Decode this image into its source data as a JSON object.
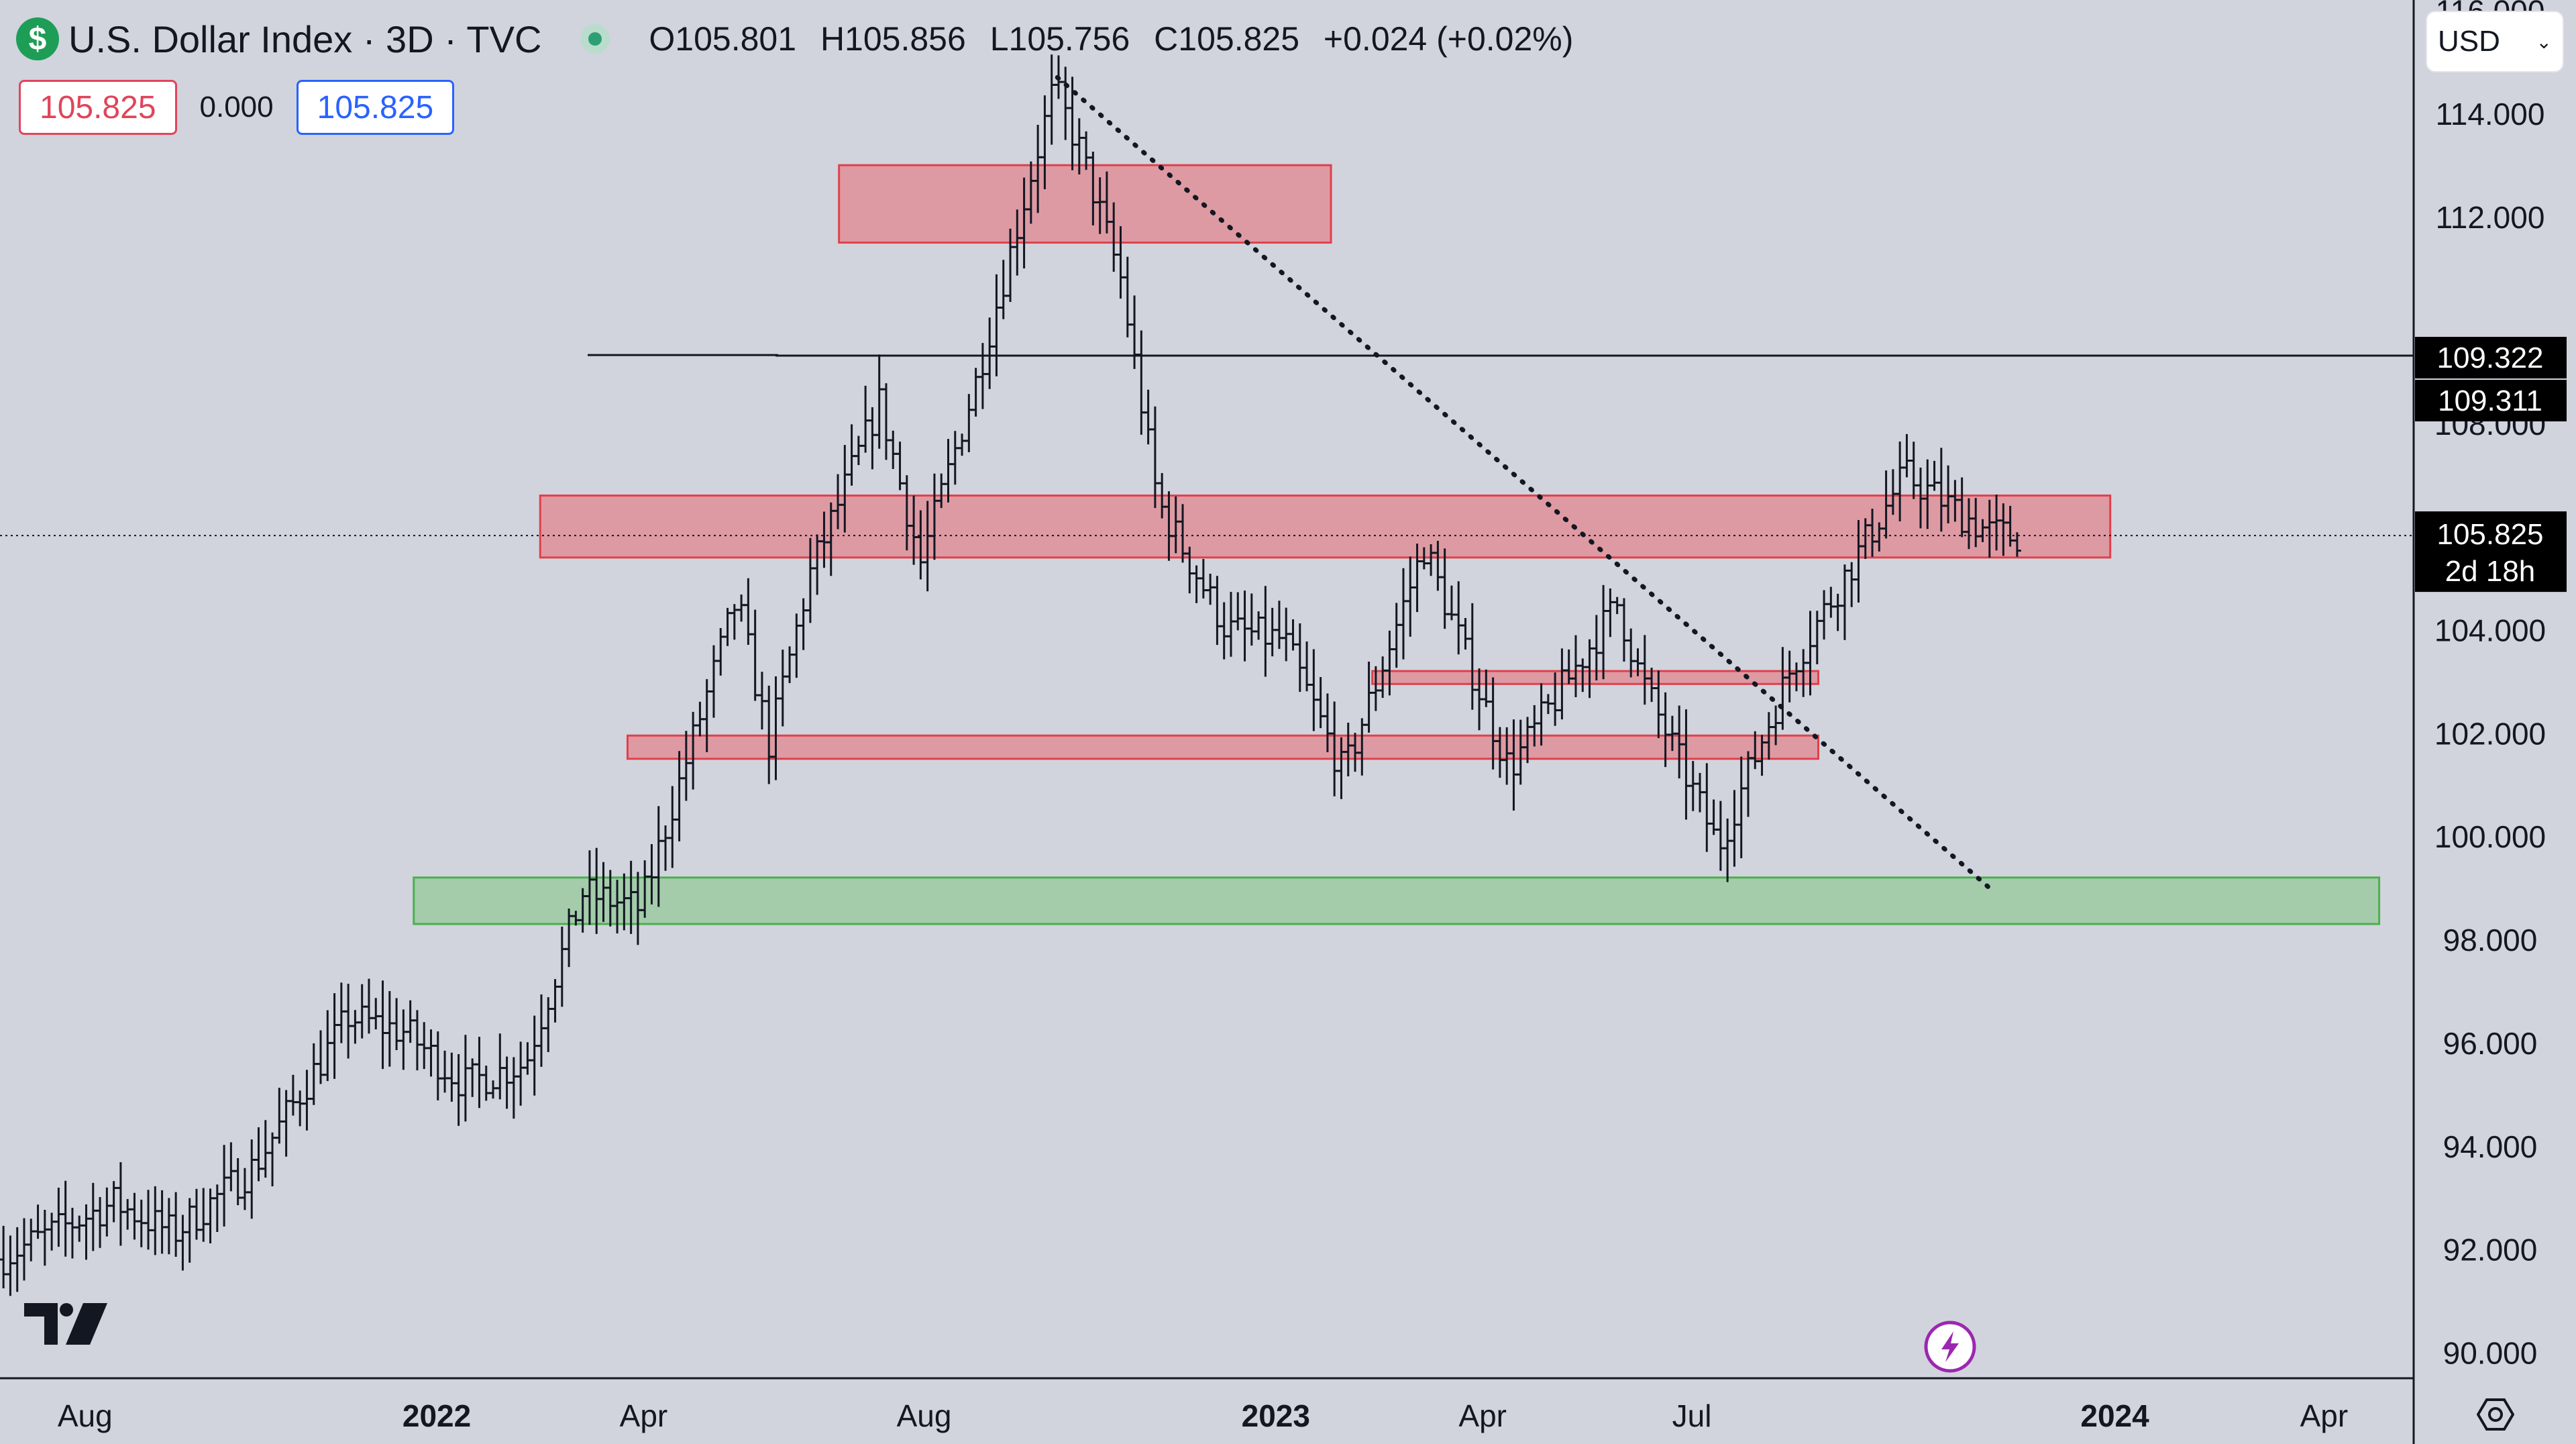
{
  "header": {
    "symbol_badge": "$",
    "title": "U.S. Dollar Index · 3D · TVC",
    "status_icon": "market-status-dot-icon",
    "ohlc": {
      "open": "O105.801",
      "high": "H105.856",
      "low": "L105.756",
      "close": "C105.825",
      "change": "+0.024 (+0.02%)"
    }
  },
  "trade": {
    "sell_price": "105.825",
    "spread": "0.000",
    "buy_price": "105.825"
  },
  "currency_selector": {
    "value": "USD"
  },
  "colors": {
    "background": "#d1d4dc",
    "resistance_zone": "#de9aa3",
    "resistance_border": "#e0404c",
    "support_zone": "#a4ccaa",
    "support_border": "#4caf50",
    "bars": "#131722",
    "badge_green": "#1e9d57",
    "sell": "#e0455a",
    "buy": "#2962ff"
  },
  "chart_data": {
    "type": "ohlc",
    "title": "U.S. Dollar Index · 3D · TVC",
    "xlabel": "",
    "ylabel": "",
    "x_range": [
      "2021-06-25",
      "2024-05-10"
    ],
    "ylim": [
      89.5,
      116.2
    ],
    "y_ticks": [
      90,
      92,
      94,
      96,
      98,
      100,
      102,
      104,
      106,
      108,
      110,
      112,
      114,
      116
    ],
    "y_tick_labels": [
      "90.000",
      "92.000",
      "94.000",
      "96.000",
      "98.000",
      "100.000",
      "102.000",
      "104.000",
      "",
      "108.000",
      "",
      "112.000",
      "114.000",
      "116.000"
    ],
    "x_ticks": [
      {
        "date": "2021-08-01",
        "label": "Aug",
        "bold": false
      },
      {
        "date": "2022-01-01",
        "label": "2022",
        "bold": true
      },
      {
        "date": "2022-04-01",
        "label": "Apr",
        "bold": false
      },
      {
        "date": "2022-08-01",
        "label": "Aug",
        "bold": false
      },
      {
        "date": "2023-01-01",
        "label": "2023",
        "bold": true
      },
      {
        "date": "2023-04-01",
        "label": "Apr",
        "bold": false
      },
      {
        "date": "2023-07-01",
        "label": "Jul",
        "bold": false
      },
      {
        "date": "2024-01-01",
        "label": "2024",
        "bold": true
      },
      {
        "date": "2024-04-01",
        "label": "Apr",
        "bold": false
      }
    ],
    "price_path": [
      {
        "date": "2021-06-25",
        "value": 91.8
      },
      {
        "date": "2021-08-15",
        "value": 92.9
      },
      {
        "date": "2021-09-10",
        "value": 92.3
      },
      {
        "date": "2021-10-15",
        "value": 93.6
      },
      {
        "date": "2021-11-25",
        "value": 96.5
      },
      {
        "date": "2021-12-20",
        "value": 96.2
      },
      {
        "date": "2022-01-14",
        "value": 95.2
      },
      {
        "date": "2022-02-10",
        "value": 95.6
      },
      {
        "date": "2022-03-07",
        "value": 98.9
      },
      {
        "date": "2022-04-01",
        "value": 98.6
      },
      {
        "date": "2022-05-13",
        "value": 104.6
      },
      {
        "date": "2022-05-27",
        "value": 101.8
      },
      {
        "date": "2022-06-14",
        "value": 105.1
      },
      {
        "date": "2022-07-14",
        "value": 108.4
      },
      {
        "date": "2022-08-01",
        "value": 105.3
      },
      {
        "date": "2022-08-25",
        "value": 108.8
      },
      {
        "date": "2022-09-28",
        "value": 114.5
      },
      {
        "date": "2022-10-10",
        "value": 113.2
      },
      {
        "date": "2022-10-27",
        "value": 110.8
      },
      {
        "date": "2022-11-12",
        "value": 106.5
      },
      {
        "date": "2022-12-12",
        "value": 104.0
      },
      {
        "date": "2023-01-06",
        "value": 103.8
      },
      {
        "date": "2023-02-01",
        "value": 101.2
      },
      {
        "date": "2023-03-08",
        "value": 105.6
      },
      {
        "date": "2023-04-14",
        "value": 101.3
      },
      {
        "date": "2023-05-31",
        "value": 104.5
      },
      {
        "date": "2023-06-10",
        "value": 103.1
      },
      {
        "date": "2023-07-14",
        "value": 99.8
      },
      {
        "date": "2023-08-15",
        "value": 103.3
      },
      {
        "date": "2023-10-03",
        "value": 107.0
      },
      {
        "date": "2023-11-08",
        "value": 105.9
      },
      {
        "date": "2023-11-20",
        "value": 105.8
      }
    ],
    "last_price": 105.825,
    "bar_countdown": "2d 18h",
    "horizontal_levels": [
      {
        "value": 109.322,
        "label": "109.322"
      },
      {
        "value": 109.311,
        "label": "109.311"
      }
    ],
    "zones": [
      {
        "type": "resistance",
        "from": "2022-06-25",
        "to": "2023-01-25",
        "low": 111.5,
        "high": 113.0
      },
      {
        "type": "resistance",
        "from": "2022-02-15",
        "to": "2023-12-30",
        "low": 105.4,
        "high": 106.6
      },
      {
        "type": "resistance",
        "from": "2023-02-12",
        "to": "2023-08-25",
        "low": 102.95,
        "high": 103.2
      },
      {
        "type": "resistance",
        "from": "2022-03-25",
        "to": "2023-08-25",
        "low": 101.5,
        "high": 101.95
      },
      {
        "type": "support",
        "from": "2021-12-22",
        "to": "2024-04-25",
        "low": 98.3,
        "high": 99.2
      }
    ],
    "trendline": {
      "from": {
        "date": "2022-09-28",
        "value": 114.7
      },
      "to": {
        "date": "2023-11-10",
        "value": 98.9
      },
      "style": "dotted"
    },
    "grid": false
  }
}
